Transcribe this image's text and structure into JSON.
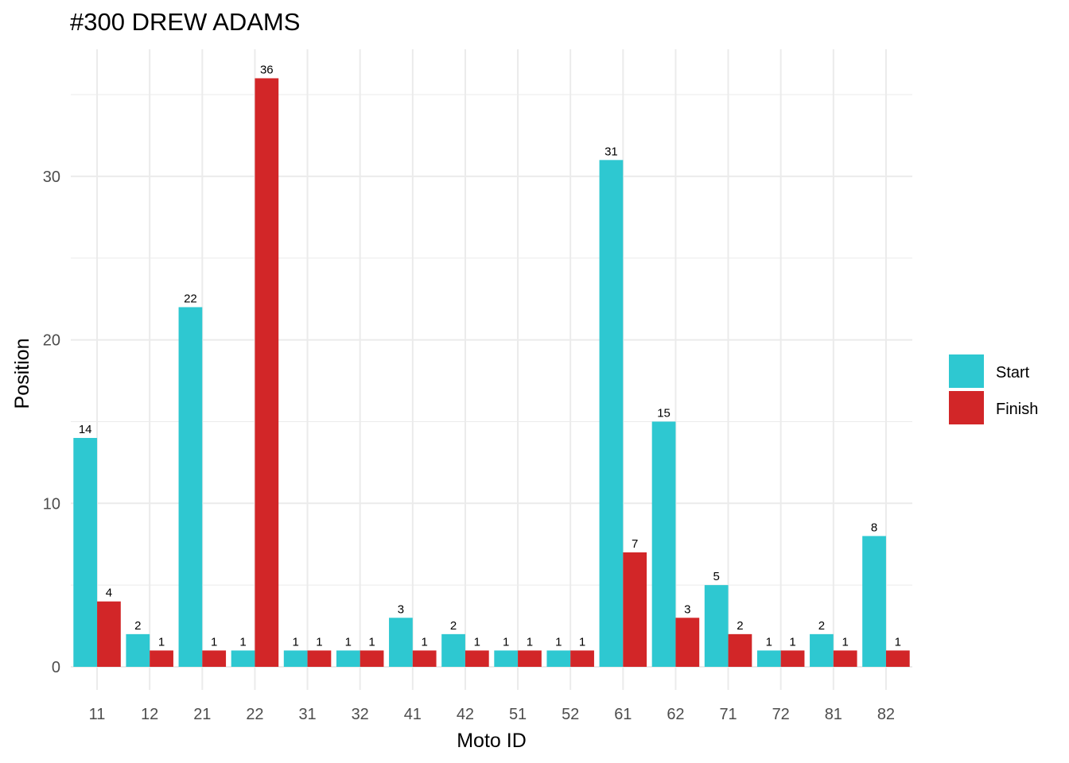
{
  "chart_data": {
    "type": "bar",
    "title": "#300 DREW ADAMS",
    "xlabel": "Moto ID",
    "ylabel": "Position",
    "categories": [
      "11",
      "12",
      "21",
      "22",
      "31",
      "32",
      "41",
      "42",
      "51",
      "52",
      "61",
      "62",
      "71",
      "72",
      "81",
      "82"
    ],
    "series": [
      {
        "name": "Start",
        "color": "#2ec8d1",
        "values": [
          14,
          2,
          22,
          1,
          1,
          1,
          3,
          2,
          1,
          1,
          31,
          15,
          5,
          1,
          2,
          8
        ]
      },
      {
        "name": "Finish",
        "color": "#d22628",
        "values": [
          4,
          1,
          1,
          36,
          1,
          1,
          1,
          1,
          1,
          1,
          7,
          3,
          2,
          1,
          1,
          1
        ]
      }
    ],
    "ylim": [
      0,
      37.8
    ],
    "yticks": [
      0,
      10,
      20,
      30
    ],
    "grid": true,
    "legend_position": "right"
  }
}
